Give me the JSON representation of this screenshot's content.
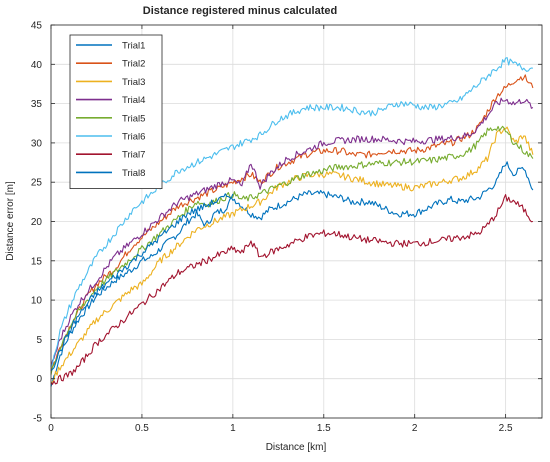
{
  "chart_data": {
    "type": "line",
    "title": "Distance registered minus calculated",
    "xlabel": "Distance [km]",
    "ylabel": "Distance error [m]",
    "xlim": [
      0,
      2.7
    ],
    "ylim": [
      -5,
      45
    ],
    "xticks": [
      0,
      0.5,
      1,
      1.5,
      2,
      2.5
    ],
    "xtick_labels": [
      "0",
      "0.5",
      "1",
      "1.5",
      "2",
      "2.5"
    ],
    "yticks": [
      -5,
      0,
      5,
      10,
      15,
      20,
      25,
      30,
      35,
      40,
      45
    ],
    "ytick_labels": [
      "-5",
      "0",
      "5",
      "10",
      "15",
      "20",
      "25",
      "30",
      "35",
      "40",
      "45"
    ],
    "grid": true,
    "legend_position": "top-left",
    "series": [
      {
        "name": "Trial1",
        "color": "#0072BD",
        "x": [
          0,
          0.05,
          0.1,
          0.15,
          0.2,
          0.25,
          0.3,
          0.35,
          0.4,
          0.45,
          0.5,
          0.55,
          0.6,
          0.65,
          0.7,
          0.75,
          0.8,
          0.85,
          0.9,
          0.95,
          1.0,
          1.05,
          1.1,
          1.15,
          1.2,
          1.25,
          1.3,
          1.35,
          1.4,
          1.45,
          1.5,
          1.55,
          1.6,
          1.65,
          1.7,
          1.75,
          1.8,
          1.85,
          1.9,
          1.95,
          2.0,
          2.05,
          2.1,
          2.15,
          2.2,
          2.25,
          2.3,
          2.35,
          2.4,
          2.45,
          2.5,
          2.55,
          2.6,
          2.65
        ],
        "y": [
          -1,
          3,
          5.5,
          7.5,
          9,
          10.5,
          11.5,
          12.5,
          13.2,
          14,
          15,
          15.5,
          16.5,
          17.5,
          18.5,
          20,
          21,
          19.5,
          21,
          21.5,
          23,
          22,
          21,
          20.5,
          21.5,
          22,
          22.5,
          23,
          23.5,
          23.5,
          23.5,
          23.2,
          23,
          22.5,
          22.5,
          22.5,
          22,
          21.5,
          21,
          21,
          21,
          21.5,
          22,
          22.5,
          22.8,
          22.5,
          22.8,
          23,
          24,
          25,
          27.5,
          26,
          27,
          24
        ]
      },
      {
        "name": "Trial2",
        "color": "#D95319",
        "x": [
          0,
          0.05,
          0.1,
          0.15,
          0.2,
          0.25,
          0.3,
          0.35,
          0.4,
          0.45,
          0.5,
          0.55,
          0.6,
          0.65,
          0.7,
          0.75,
          0.8,
          0.85,
          0.9,
          0.95,
          1.0,
          1.05,
          1.1,
          1.15,
          1.2,
          1.25,
          1.3,
          1.35,
          1.4,
          1.45,
          1.5,
          1.55,
          1.6,
          1.65,
          1.7,
          1.75,
          1.8,
          1.85,
          1.9,
          1.95,
          2.0,
          2.05,
          2.1,
          2.15,
          2.2,
          2.25,
          2.3,
          2.35,
          2.4,
          2.45,
          2.5,
          2.55,
          2.6,
          2.65
        ],
        "y": [
          1,
          4,
          6.5,
          8.5,
          10.5,
          12,
          13,
          14,
          15.5,
          17,
          18,
          19,
          20,
          21,
          22,
          22.5,
          23,
          23.5,
          24,
          24.5,
          25,
          25.5,
          26,
          25,
          26,
          27,
          27.5,
          28,
          28.5,
          28.8,
          29,
          29,
          29,
          28.5,
          28.5,
          28.5,
          28.8,
          29,
          29,
          29,
          29,
          29.2,
          29.5,
          29.8,
          30,
          30.5,
          31,
          32,
          34,
          36,
          37,
          38,
          38.5,
          37
        ]
      },
      {
        "name": "Trial3",
        "color": "#EDB120",
        "x": [
          0,
          0.05,
          0.1,
          0.15,
          0.2,
          0.25,
          0.3,
          0.35,
          0.4,
          0.45,
          0.5,
          0.55,
          0.6,
          0.65,
          0.7,
          0.75,
          0.8,
          0.85,
          0.9,
          0.95,
          1.0,
          1.05,
          1.1,
          1.15,
          1.2,
          1.25,
          1.3,
          1.35,
          1.4,
          1.45,
          1.5,
          1.55,
          1.6,
          1.65,
          1.7,
          1.75,
          1.8,
          1.85,
          1.9,
          1.95,
          2.0,
          2.05,
          2.1,
          2.15,
          2.2,
          2.25,
          2.3,
          2.35,
          2.4,
          2.45,
          2.5,
          2.55,
          2.6,
          2.65
        ],
        "y": [
          -0.5,
          1.5,
          3,
          4.5,
          6,
          7.5,
          8.5,
          9.5,
          10.5,
          11.5,
          12,
          13.5,
          15,
          16,
          17,
          18,
          19,
          19.5,
          20,
          20.5,
          21,
          21.5,
          22,
          22.5,
          23.5,
          24.5,
          25,
          25.5,
          25.8,
          26,
          26,
          26,
          25.8,
          25.5,
          25.3,
          25,
          24.8,
          24.6,
          24.5,
          24.4,
          24.3,
          24.5,
          24.8,
          25,
          25.3,
          25.5,
          26,
          26.8,
          28,
          31,
          32,
          30,
          31,
          28.5
        ]
      },
      {
        "name": "Trial4",
        "color": "#7E2F8E",
        "x": [
          0,
          0.05,
          0.1,
          0.15,
          0.2,
          0.25,
          0.3,
          0.35,
          0.4,
          0.45,
          0.5,
          0.55,
          0.6,
          0.65,
          0.7,
          0.75,
          0.8,
          0.85,
          0.9,
          0.95,
          1.0,
          1.05,
          1.1,
          1.15,
          1.2,
          1.25,
          1.3,
          1.35,
          1.4,
          1.45,
          1.5,
          1.55,
          1.6,
          1.65,
          1.7,
          1.75,
          1.8,
          1.85,
          1.9,
          1.95,
          2.0,
          2.05,
          2.1,
          2.15,
          2.2,
          2.25,
          2.3,
          2.35,
          2.4,
          2.45,
          2.5,
          2.55,
          2.6,
          2.65
        ],
        "y": [
          1.5,
          5,
          7.5,
          9.5,
          11,
          12.5,
          14,
          15.5,
          16.5,
          17.5,
          18.5,
          19.5,
          20.5,
          21.5,
          22.5,
          23,
          23.5,
          24,
          24.5,
          25,
          25.2,
          24.5,
          27.5,
          24.5,
          26,
          27,
          28,
          28.5,
          29,
          29.5,
          30,
          30.2,
          30.3,
          30.4,
          30.5,
          30.5,
          30.5,
          30.4,
          30.3,
          30.2,
          30.2,
          30.3,
          30.4,
          30.5,
          30.6,
          30.8,
          31,
          32,
          33.5,
          35,
          35.5,
          35,
          35.5,
          34.5
        ]
      },
      {
        "name": "Trial5",
        "color": "#77AC30",
        "x": [
          0,
          0.05,
          0.1,
          0.15,
          0.2,
          0.25,
          0.3,
          0.35,
          0.4,
          0.45,
          0.5,
          0.55,
          0.6,
          0.65,
          0.7,
          0.75,
          0.8,
          0.85,
          0.9,
          0.95,
          1.0,
          1.05,
          1.1,
          1.15,
          1.2,
          1.25,
          1.3,
          1.35,
          1.4,
          1.45,
          1.5,
          1.55,
          1.6,
          1.65,
          1.7,
          1.75,
          1.8,
          1.85,
          1.9,
          1.95,
          2.0,
          2.05,
          2.1,
          2.15,
          2.2,
          2.25,
          2.3,
          2.35,
          2.4,
          2.45,
          2.5,
          2.55,
          2.6,
          2.65
        ],
        "y": [
          0.5,
          4,
          6.5,
          8.5,
          10,
          11.5,
          12.5,
          13.5,
          14.5,
          15.5,
          16.5,
          17.5,
          18.5,
          19.5,
          20.5,
          21.5,
          22.5,
          22.2,
          22.5,
          23,
          23.5,
          22.8,
          23,
          23.5,
          24,
          24.5,
          25,
          25.5,
          26,
          26.2,
          26.5,
          26.8,
          27,
          27,
          27.2,
          27.3,
          27.4,
          27.5,
          27.5,
          27.6,
          27.6,
          27.7,
          27.8,
          28,
          28.2,
          28.5,
          29,
          30,
          31.5,
          32,
          31.5,
          30,
          29,
          28
        ]
      },
      {
        "name": "Trial6",
        "color": "#4DBEEE",
        "x": [
          0,
          0.05,
          0.1,
          0.15,
          0.2,
          0.25,
          0.3,
          0.35,
          0.4,
          0.45,
          0.5,
          0.55,
          0.6,
          0.65,
          0.7,
          0.75,
          0.8,
          0.85,
          0.9,
          0.95,
          1.0,
          1.05,
          1.1,
          1.15,
          1.2,
          1.25,
          1.3,
          1.35,
          1.4,
          1.45,
          1.5,
          1.55,
          1.6,
          1.65,
          1.7,
          1.75,
          1.8,
          1.85,
          1.9,
          1.95,
          2.0,
          2.05,
          2.1,
          2.15,
          2.2,
          2.25,
          2.3,
          2.35,
          2.4,
          2.45,
          2.5,
          2.55,
          2.6,
          2.65
        ],
        "y": [
          1.5,
          6,
          9,
          11.5,
          13.5,
          15.5,
          17,
          18.5,
          20,
          21.5,
          22.5,
          23.5,
          24.5,
          25.5,
          26.5,
          27,
          27.5,
          28,
          28.5,
          29,
          29.5,
          30,
          30.5,
          31,
          32,
          33,
          33.5,
          34,
          34.5,
          34.5,
          34.5,
          34.5,
          34.5,
          34.3,
          34,
          33.8,
          34,
          34.5,
          35,
          35,
          34.8,
          34.5,
          34.5,
          34.8,
          35,
          35.5,
          36.5,
          37.5,
          38.5,
          39.5,
          40.5,
          40,
          39.5,
          39.5
        ]
      },
      {
        "name": "Trial7",
        "color": "#A2142F",
        "x": [
          0,
          0.05,
          0.1,
          0.15,
          0.2,
          0.25,
          0.3,
          0.35,
          0.4,
          0.45,
          0.5,
          0.55,
          0.6,
          0.65,
          0.7,
          0.75,
          0.8,
          0.85,
          0.9,
          0.95,
          1.0,
          1.05,
          1.1,
          1.15,
          1.2,
          1.25,
          1.3,
          1.35,
          1.4,
          1.45,
          1.5,
          1.55,
          1.6,
          1.65,
          1.7,
          1.75,
          1.8,
          1.85,
          1.9,
          1.95,
          2.0,
          2.05,
          2.1,
          2.15,
          2.2,
          2.25,
          2.3,
          2.35,
          2.4,
          2.45,
          2.5,
          2.55,
          2.6,
          2.65
        ],
        "y": [
          -0.5,
          0,
          0.5,
          1.5,
          3,
          4.5,
          5.5,
          6.5,
          7.5,
          8.5,
          9.5,
          10.5,
          11.5,
          12.5,
          13.5,
          14,
          14.5,
          15,
          15.5,
          16,
          16.5,
          16,
          17.5,
          15.5,
          16,
          16.5,
          17,
          17.5,
          18,
          18.3,
          18.5,
          18.5,
          18.3,
          18,
          17.8,
          17.6,
          17.5,
          17.3,
          17.2,
          17.2,
          17.2,
          17.3,
          17.5,
          17.6,
          17.8,
          18,
          18.2,
          18.5,
          19.5,
          21,
          23,
          22.5,
          21.5,
          20
        ]
      },
      {
        "name": "Trial8",
        "color": "#0072BD",
        "x": [
          0,
          0.05,
          0.1,
          0.15,
          0.2,
          0.25,
          0.3,
          0.35,
          0.4,
          0.45,
          0.5,
          0.55,
          0.6,
          0.65,
          0.7,
          0.75,
          0.8,
          0.85,
          0.9,
          0.95,
          1.0
        ],
        "y": [
          1,
          3.5,
          6,
          8,
          9.5,
          11,
          12,
          13,
          14,
          15,
          16,
          17,
          18,
          19,
          20,
          21,
          21.5,
          22,
          22.5,
          23,
          23.5
        ]
      }
    ]
  }
}
